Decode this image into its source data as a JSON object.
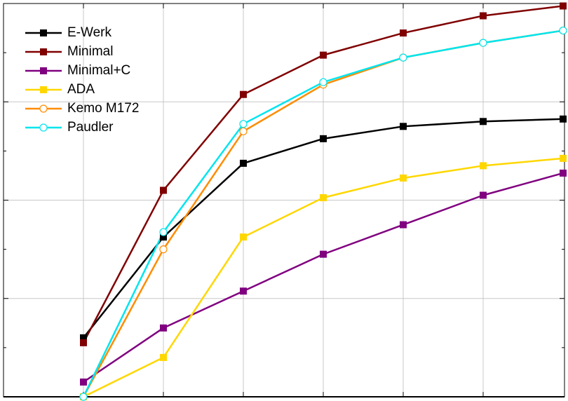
{
  "chart_data": {
    "type": "line",
    "title": "",
    "xlabel": "",
    "ylabel": "",
    "x": [
      1,
      2,
      3,
      4,
      5,
      6,
      7
    ],
    "xlim": [
      0,
      7
    ],
    "ylim": [
      0,
      1.6
    ],
    "grid": true,
    "legend_position": "top-left",
    "series": [
      {
        "name": "E-Werk",
        "color": "#000000",
        "marker": "square-filled",
        "values": [
          0.24,
          0.65,
          0.95,
          1.05,
          1.1,
          1.12,
          1.13
        ]
      },
      {
        "name": "Minimal",
        "color": "#800000",
        "marker": "square-filled",
        "values": [
          0.22,
          0.84,
          1.23,
          1.39,
          1.48,
          1.55,
          1.59
        ]
      },
      {
        "name": "Minimal+C",
        "color": "#800080",
        "marker": "square-filled",
        "values": [
          0.06,
          0.28,
          0.43,
          0.58,
          0.7,
          0.82,
          0.91
        ]
      },
      {
        "name": "ADA",
        "color": "#FFD700",
        "marker": "square-filled",
        "values": [
          0.0,
          0.16,
          0.65,
          0.81,
          0.89,
          0.94,
          0.97
        ]
      },
      {
        "name": "Kemo M172",
        "color": "#FF8C00",
        "marker": "circle-open",
        "values": [
          0.0,
          0.6,
          1.08,
          1.27,
          1.38,
          1.44,
          1.49
        ]
      },
      {
        "name": "Paudler",
        "color": "#00E5EE",
        "marker": "circle-open",
        "values": [
          0.0,
          0.67,
          1.11,
          1.28,
          1.38,
          1.44,
          1.49
        ]
      }
    ]
  }
}
